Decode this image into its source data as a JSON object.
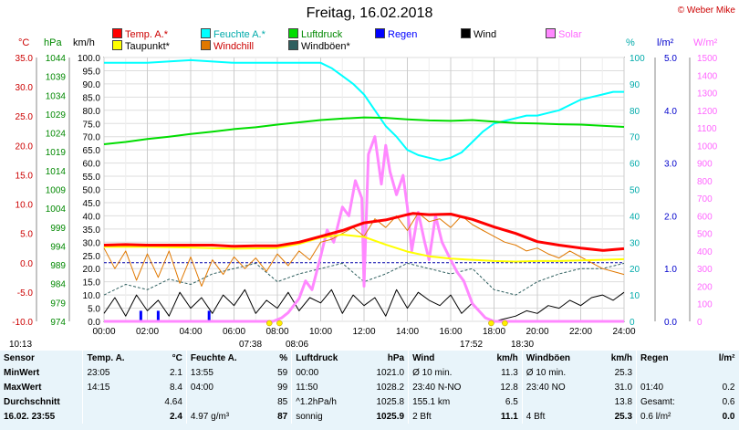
{
  "title": "Freitag, 16.02.2018",
  "copyright": "© Weber Mike",
  "legend": [
    {
      "label": "Temp. A.*",
      "color": "#ff0000"
    },
    {
      "label": "Feuchte A.*",
      "color": "#00ffff"
    },
    {
      "label": "Luftdruck",
      "color": "#00dd00"
    },
    {
      "label": "Regen",
      "color": "#0000ff",
      "text_color": "#0000ff"
    },
    {
      "label": "Wind",
      "color": "#000000"
    },
    {
      "label": "Solar",
      "color": "#ff88ff"
    },
    {
      "label": "Taupunkt*",
      "color": "#ffff00"
    },
    {
      "label": "Windchill",
      "color": "#e07800"
    },
    {
      "label": "Windböen*",
      "color": "#2f5f5f"
    }
  ],
  "units": {
    "temp": "°C",
    "press": "hPa",
    "wind": "km/h",
    "hum": "%",
    "rain": "l/m²",
    "solar": "W/m²"
  },
  "chart_data": {
    "type": "line",
    "x_label_ticks": [
      "00:00",
      "02:00",
      "04:00",
      "06:00",
      "08:00",
      "10:00",
      "12:00",
      "14:00",
      "16:00",
      "18:00",
      "20:00",
      "22:00",
      "24:00"
    ],
    "axes": {
      "temp": {
        "ticks": [
          "35.0",
          "30.0",
          "25.0",
          "20.0",
          "15.0",
          "10.0",
          "5.0",
          "0.0",
          "-5.0",
          "-10.0"
        ],
        "range": [
          -10,
          35
        ]
      },
      "press": {
        "ticks": [
          "1044",
          "1039",
          "1034",
          "1029",
          "1024",
          "1019",
          "1014",
          "1009",
          "1004",
          "999",
          "994",
          "989",
          "984",
          "979",
          "974"
        ],
        "range": [
          974,
          1044
        ]
      },
      "wind": {
        "ticks": [
          "100.0",
          "95.0",
          "90.0",
          "85.0",
          "80.0",
          "75.0",
          "70.0",
          "65.0",
          "60.0",
          "55.0",
          "50.0",
          "45.0",
          "40.0",
          "35.0",
          "30.0",
          "25.0",
          "20.0",
          "15.0",
          "10.0",
          "5.0",
          "0.0"
        ],
        "range": [
          0,
          100
        ]
      },
      "hum": {
        "ticks": [
          "100",
          "90",
          "80",
          "70",
          "60",
          "50",
          "40",
          "30",
          "20",
          "10",
          "0"
        ],
        "range": [
          0,
          100
        ]
      },
      "rain": {
        "ticks": [
          "5.0",
          "4.0",
          "3.0",
          "2.0",
          "1.0",
          "0.0"
        ],
        "range": [
          0,
          5
        ]
      },
      "solar": {
        "ticks": [
          "1500",
          "1400",
          "1300",
          "1200",
          "1100",
          "1000",
          "900",
          "800",
          "700",
          "600",
          "500",
          "400",
          "300",
          "200",
          "100",
          "0"
        ],
        "range": [
          0,
          1500
        ]
      }
    },
    "series": [
      {
        "name": "Temp. A.*",
        "axis": "temp",
        "color": "#ff0000",
        "width": 3,
        "x": [
          0,
          1,
          2,
          3,
          4,
          5,
          6,
          7,
          8,
          9,
          10,
          11,
          12,
          13,
          14,
          14.25,
          15,
          16,
          17,
          18,
          19,
          20,
          21,
          22,
          23,
          23.08,
          24
        ],
        "y": [
          3.0,
          3.1,
          3.0,
          3.0,
          3.0,
          3.0,
          2.8,
          2.9,
          2.9,
          3.5,
          4.5,
          5.5,
          6.8,
          7.3,
          8.2,
          8.4,
          8.2,
          8.3,
          7.4,
          6.1,
          5.0,
          3.6,
          3.0,
          2.5,
          2.1,
          2.1,
          2.4
        ]
      },
      {
        "name": "Taupunkt*",
        "axis": "temp",
        "color": "#ffff00",
        "width": 2,
        "x": [
          0,
          2,
          4,
          6,
          8,
          9,
          10,
          11,
          12,
          13,
          14,
          15,
          16,
          17,
          18,
          19,
          20,
          21,
          22,
          23,
          24
        ],
        "y": [
          2.7,
          2.7,
          2.6,
          2.4,
          2.5,
          3.2,
          4.3,
          4.8,
          4.4,
          3.1,
          1.9,
          1.1,
          0.7,
          0.5,
          0.3,
          0.2,
          0.3,
          0.3,
          0.4,
          0.5,
          0.6
        ]
      },
      {
        "name": "Windchill",
        "axis": "temp",
        "color": "#e07800",
        "width": 1,
        "x": [
          0,
          0.5,
          1,
          1.5,
          2,
          2.5,
          3,
          3.5,
          4,
          4.5,
          5,
          5.5,
          6,
          6.5,
          7,
          7.5,
          8,
          8.5,
          9,
          9.5,
          10,
          10.5,
          11,
          11.5,
          12,
          12.5,
          13,
          13.5,
          14,
          14.5,
          15,
          15.5,
          16,
          16.5,
          17,
          17.5,
          18,
          18.5,
          19,
          19.5,
          20,
          20.5,
          21,
          21.5,
          22,
          22.5,
          23,
          23.5,
          24
        ],
        "y": [
          2.5,
          -1.0,
          2.0,
          -3.0,
          1.5,
          -2.5,
          2.0,
          -3.5,
          1.0,
          -4.0,
          0.5,
          -2.0,
          1.0,
          -1.0,
          0.8,
          -1.5,
          1.5,
          -0.5,
          2.0,
          0.5,
          3.5,
          4.0,
          5.0,
          6.0,
          4.5,
          7.5,
          6.0,
          8.0,
          5.5,
          8.5,
          7.0,
          7.5,
          6.0,
          8.0,
          6.5,
          5.5,
          4.5,
          3.5,
          3.0,
          2.0,
          2.5,
          1.5,
          0.8,
          2.0,
          1.0,
          0.0,
          -1.0,
          -1.5,
          -2.0
        ]
      },
      {
        "name": "Feuchte A.*",
        "axis": "hum",
        "color": "#00ffff",
        "width": 2,
        "x": [
          0,
          2,
          4,
          6,
          8,
          9,
          10,
          10.5,
          11,
          11.5,
          12,
          12.5,
          13,
          13.5,
          14,
          14.5,
          15,
          15.5,
          16,
          16.5,
          17,
          17.5,
          18,
          18.5,
          19,
          19.5,
          20,
          20.5,
          21,
          21.5,
          22,
          22.5,
          23,
          23.5,
          24
        ],
        "y": [
          98,
          98,
          99,
          98,
          98,
          98,
          98,
          96,
          93,
          90,
          86,
          80,
          74,
          70,
          65,
          63,
          62,
          61,
          62,
          64,
          68,
          72,
          75,
          76,
          77,
          78,
          78,
          79,
          80,
          82,
          84,
          85,
          86,
          87,
          87
        ]
      },
      {
        "name": "Luftdruck",
        "axis": "press",
        "color": "#00dd00",
        "width": 2,
        "x": [
          0,
          1,
          2,
          3,
          4,
          5,
          6,
          7,
          8,
          9,
          10,
          11,
          12,
          13,
          14,
          15,
          16,
          17,
          18,
          19,
          20,
          21,
          22,
          23,
          24
        ],
        "y": [
          1021.0,
          1021.6,
          1022.4,
          1023.0,
          1023.7,
          1024.3,
          1025.0,
          1025.5,
          1026.2,
          1026.8,
          1027.4,
          1027.8,
          1028.1,
          1028.0,
          1027.6,
          1027.3,
          1027.2,
          1027.4,
          1027.0,
          1026.6,
          1026.5,
          1026.3,
          1026.2,
          1025.9,
          1025.6
        ]
      },
      {
        "name": "Solar",
        "axis": "solar",
        "color": "#ff88ff",
        "width": 3,
        "x": [
          0,
          7.8,
          8.2,
          8.5,
          9,
          9.3,
          9.6,
          10,
          10.3,
          10.6,
          11,
          11.3,
          11.6,
          11.9,
          12.0,
          12.2,
          12.5,
          12.8,
          13.0,
          13.2,
          13.5,
          13.8,
          14.0,
          14.2,
          14.5,
          14.8,
          15.0,
          15.3,
          15.6,
          16.0,
          16.3,
          16.6,
          17.0,
          17.3,
          17.6,
          18.0,
          24
        ],
        "y": [
          0,
          0,
          20,
          50,
          130,
          230,
          180,
          370,
          520,
          450,
          650,
          600,
          800,
          700,
          200,
          950,
          1050,
          780,
          1000,
          850,
          720,
          830,
          650,
          400,
          620,
          450,
          350,
          600,
          450,
          350,
          280,
          230,
          100,
          60,
          20,
          0,
          0
        ]
      },
      {
        "name": "Wind",
        "axis": "wind",
        "color": "#000000",
        "width": 1,
        "x": [
          0,
          0.5,
          1,
          1.5,
          2,
          2.5,
          3,
          3.5,
          4,
          4.5,
          5,
          5.5,
          6,
          6.5,
          7,
          7.5,
          8,
          8.5,
          9,
          9.5,
          10,
          10.5,
          11,
          11.5,
          12,
          12.5,
          13,
          13.5,
          14,
          14.5,
          15,
          15.5,
          16,
          16.5,
          17,
          17.5,
          18,
          18.5,
          19,
          19.5,
          20,
          20.5,
          21,
          21.5,
          22,
          22.5,
          23,
          23.5,
          24
        ],
        "y": [
          3,
          9,
          2,
          10,
          4,
          8,
          2,
          11,
          5,
          9,
          3,
          10,
          6,
          12,
          3,
          8,
          5,
          11,
          4,
          9,
          7,
          12,
          3,
          10,
          6,
          9,
          2,
          12,
          5,
          11,
          8,
          6,
          10,
          3,
          7,
          2,
          0,
          1,
          2,
          4,
          3,
          6,
          5,
          8,
          6,
          9,
          10,
          8,
          11
        ]
      },
      {
        "name": "Windböen*",
        "axis": "wind",
        "color": "#2f5f5f",
        "width": 1,
        "dash": "3,2",
        "x": [
          0,
          1,
          2,
          3,
          4,
          5,
          6,
          7,
          8,
          9,
          10,
          11,
          12,
          13,
          14,
          15,
          16,
          17,
          18,
          19,
          20,
          21,
          22,
          23,
          24
        ],
        "y": [
          10,
          14,
          12,
          16,
          14,
          18,
          20,
          22,
          15,
          18,
          20,
          22,
          15,
          18,
          22,
          20,
          18,
          20,
          12,
          10,
          15,
          18,
          20,
          20,
          22
        ]
      },
      {
        "name": "Regen",
        "axis": "rain",
        "color": "#0000ff",
        "width": 2,
        "x": [],
        "y": []
      }
    ],
    "rain_bars": [
      {
        "x": 1.7,
        "y": 0.2
      },
      {
        "x": 2.5,
        "y": 0.2
      },
      {
        "x": 4.85,
        "y": 0.2
      }
    ]
  },
  "bottom_labels": {
    "left_time": "10:13",
    "sunrise": "07:38",
    "dawn": "08:06",
    "sunset": "17:52",
    "dusk": "18:30"
  },
  "stats": {
    "header": [
      "Sensor",
      "Temp. A.",
      "°C",
      "Feuchte A.",
      "%",
      "Luftdruck",
      "hPa",
      "Wind",
      "km/h",
      "Windböen",
      "km/h",
      "Regen",
      "l/m²"
    ],
    "rows": [
      [
        "MinWert",
        "23:05",
        "2.1",
        "13:55",
        "59",
        "00:00",
        "1021.0",
        "Ø 10 min.",
        "11.3",
        "Ø 10 min.",
        "25.3",
        "",
        ""
      ],
      [
        "MaxWert",
        "14:15",
        "8.4",
        "04:00",
        "99",
        "11:50",
        "1028.2",
        "23:40   N-NO",
        "12.8",
        "23:40   NO",
        "31.0",
        "01:40",
        "0.2"
      ],
      [
        "Durchschnitt",
        "",
        "4.64",
        "",
        "85",
        "^1.2hPa/h",
        "1025.8",
        "155.1 km",
        "6.5",
        "",
        "13.8",
        "Gesamt:",
        "0.6"
      ],
      [
        "16.02.  23:55",
        "",
        "2.4",
        "4.97 g/m³",
        "87",
        "sonnig",
        "1025.9",
        "2 Bft",
        "11.1",
        "4 Bft",
        "25.3",
        "0.6 l/m²",
        "0.0"
      ]
    ]
  }
}
